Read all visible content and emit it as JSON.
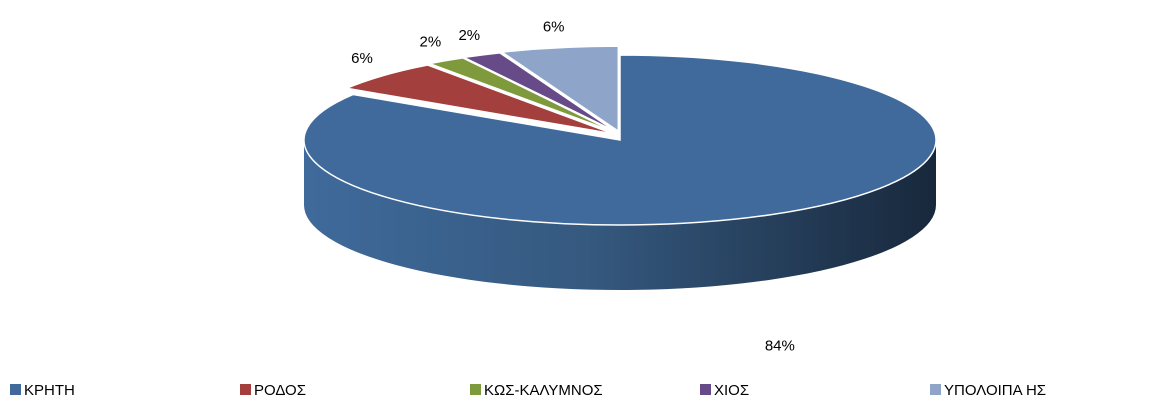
{
  "chart_data": {
    "type": "pie",
    "categories": [
      "ΚΡΗΤΗ",
      "ΡΟΔΟΣ",
      "ΚΩΣ-ΚΑΛΥΜΝΟΣ",
      "ΧΙΟΣ",
      "ΥΠΟΛΟΙΠΑ ΗΣ"
    ],
    "values": [
      84,
      6,
      2,
      2,
      6
    ],
    "value_labels": [
      "84%",
      "6%",
      "2%",
      "2%",
      "6%"
    ],
    "colors": [
      "#3f6a9b",
      "#a33f3c",
      "#7f9a3d",
      "#674b88",
      "#8ea5c9"
    ],
    "legend": "bottom"
  }
}
